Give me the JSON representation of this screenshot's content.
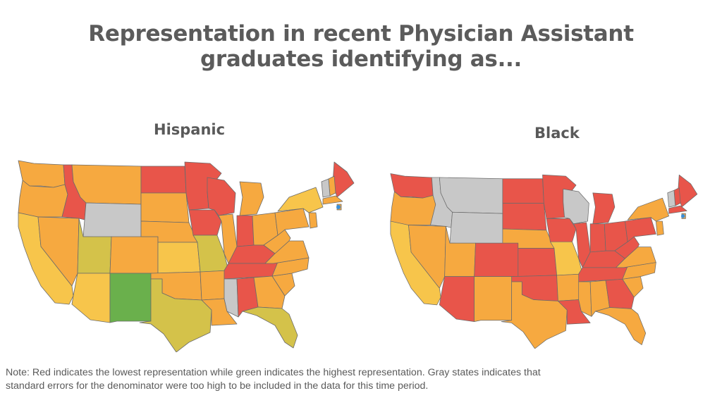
{
  "title_line1": "Representation in recent Physician Assistant",
  "title_line2": "graduates identifying as...",
  "maps": [
    {
      "heading": "Hispanic"
    },
    {
      "heading": "Black"
    }
  ],
  "note_line1": "Note: Red indicates the lowest representation while green indicates the highest representation. Gray states indicates that",
  "note_line2": "standard errors for the denominator were too high to be included in the data for this time period.",
  "colors": {
    "lowest": "#e8554a",
    "low": "#f28b3a",
    "mid_low": "#f6a940",
    "mid": "#f7c54b",
    "mid_high": "#d4c24a",
    "highest": "#6ab04c",
    "no_data": "#c8c8c8",
    "marker": "#3a8fd8"
  },
  "chart_data": [
    {
      "type": "map",
      "title": "Hispanic",
      "region": "United States",
      "states": {
        "WA": "mid_low",
        "OR": "mid_low",
        "CA": "mid",
        "NV": "mid_low",
        "ID": "lowest",
        "MT": "mid_low",
        "WY": "no_data",
        "UT": "mid_high",
        "AZ": "mid",
        "CO": "mid_low",
        "NM": "highest",
        "ND": "lowest",
        "SD": "mid_low",
        "NE": "mid_low",
        "KS": "mid",
        "OK": "mid_low",
        "TX": "mid_high",
        "MN": "lowest",
        "IA": "lowest",
        "MO": "mid_high",
        "AR": "mid_low",
        "LA": "mid_low",
        "WI": "lowest",
        "IL": "mid_low",
        "MI": "mid_low",
        "IN": "lowest",
        "OH": "mid_low",
        "KY": "lowest",
        "TN": "lowest",
        "MS": "no_data",
        "AL": "lowest",
        "GA": "mid_low",
        "FL": "mid_high",
        "SC": "mid_low",
        "NC": "mid_low",
        "VA": "mid_low",
        "WV": "mid_low",
        "PA": "mid_low",
        "NY": "mid",
        "ME": "lowest",
        "NH": "mid_low",
        "VT": "no_data",
        "MA": "mid_low",
        "NJ": "mid_low",
        "RI": "mid_low"
      }
    },
    {
      "type": "map",
      "title": "Black",
      "region": "United States",
      "states": {
        "WA": "lowest",
        "OR": "mid_low",
        "CA": "mid",
        "NV": "mid_low",
        "ID": "no_data",
        "MT": "no_data",
        "WY": "no_data",
        "UT": "mid_low",
        "AZ": "lowest",
        "CO": "lowest",
        "NM": "mid_low",
        "ND": "lowest",
        "SD": "lowest",
        "NE": "mid_low",
        "KS": "lowest",
        "OK": "lowest",
        "TX": "mid_low",
        "MN": "lowest",
        "IA": "lowest",
        "MO": "mid",
        "AR": "mid_low",
        "LA": "lowest",
        "WI": "no_data",
        "IL": "lowest",
        "MI": "lowest",
        "IN": "lowest",
        "OH": "lowest",
        "KY": "lowest",
        "TN": "lowest",
        "MS": "mid_low",
        "AL": "mid_low",
        "GA": "lowest",
        "FL": "mid_low",
        "SC": "mid_low",
        "NC": "mid_low",
        "VA": "mid_low",
        "WV": "lowest",
        "PA": "lowest",
        "NY": "mid_low",
        "ME": "lowest",
        "NH": "lowest",
        "VT": "no_data",
        "MA": "lowest",
        "NJ": "mid_low",
        "RI": "mid_low"
      }
    }
  ]
}
